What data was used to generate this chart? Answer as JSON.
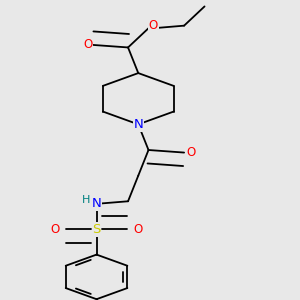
{
  "bg_color": "#e8e8e8",
  "atom_colors": {
    "C": "#000000",
    "O": "#ff0000",
    "N": "#0000ff",
    "S": "#cccc00",
    "H": "#008080"
  },
  "bond_color": "#000000",
  "bond_lw": 1.3,
  "font_size": 8.5,
  "figsize": [
    3.0,
    3.0
  ],
  "dpi": 100
}
